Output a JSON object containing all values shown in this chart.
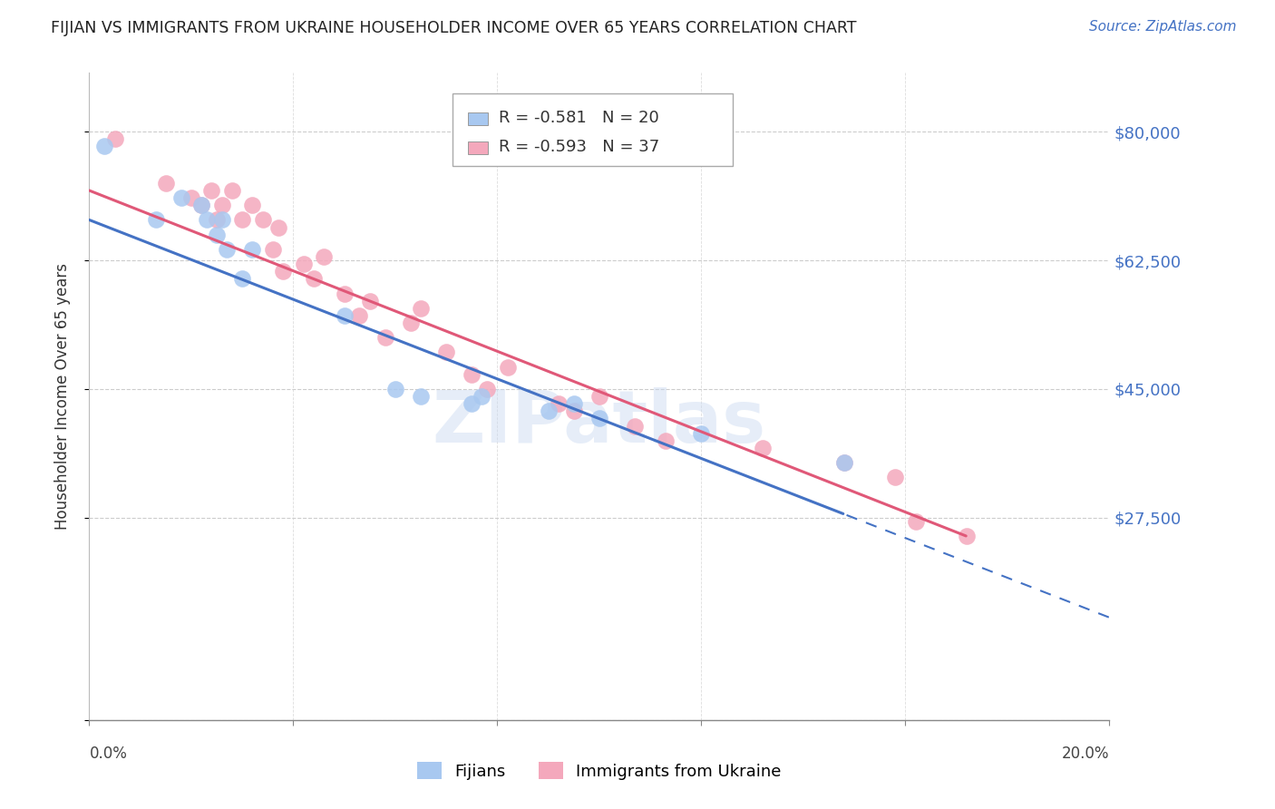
{
  "title": "FIJIAN VS IMMIGRANTS FROM UKRAINE HOUSEHOLDER INCOME OVER 65 YEARS CORRELATION CHART",
  "source": "Source: ZipAtlas.com",
  "ylabel": "Householder Income Over 65 years",
  "yticks": [
    0,
    27500,
    45000,
    62500,
    80000
  ],
  "ytick_labels": [
    "",
    "$27,500",
    "$45,000",
    "$62,500",
    "$80,000"
  ],
  "xmin": 0.0,
  "xmax": 0.2,
  "ymin": 10000,
  "ymax": 88000,
  "fijian_R": -0.581,
  "fijian_N": 20,
  "ukraine_R": -0.593,
  "ukraine_N": 37,
  "fijian_color": "#a8c8f0",
  "ukraine_color": "#f4a8bc",
  "fijian_line_color": "#4472c4",
  "ukraine_line_color": "#e05878",
  "watermark": "ZIPatlas",
  "fijian_x": [
    0.003,
    0.018,
    0.013,
    0.022,
    0.023,
    0.025,
    0.026,
    0.027,
    0.03,
    0.032,
    0.05,
    0.06,
    0.065,
    0.075,
    0.077,
    0.09,
    0.095,
    0.1,
    0.12,
    0.148
  ],
  "fijian_y": [
    78000,
    71000,
    68000,
    70000,
    68000,
    66000,
    68000,
    64000,
    60000,
    64000,
    55000,
    45000,
    44000,
    43000,
    44000,
    42000,
    43000,
    41000,
    39000,
    35000
  ],
  "ukraine_x": [
    0.005,
    0.015,
    0.02,
    0.022,
    0.024,
    0.025,
    0.026,
    0.028,
    0.03,
    0.032,
    0.034,
    0.036,
    0.037,
    0.038,
    0.042,
    0.044,
    0.046,
    0.05,
    0.053,
    0.055,
    0.058,
    0.063,
    0.065,
    0.07,
    0.075,
    0.078,
    0.082,
    0.092,
    0.095,
    0.1,
    0.107,
    0.113,
    0.132,
    0.148,
    0.158,
    0.162,
    0.172
  ],
  "ukraine_y": [
    79000,
    73000,
    71000,
    70000,
    72000,
    68000,
    70000,
    72000,
    68000,
    70000,
    68000,
    64000,
    67000,
    61000,
    62000,
    60000,
    63000,
    58000,
    55000,
    57000,
    52000,
    54000,
    56000,
    50000,
    47000,
    45000,
    48000,
    43000,
    42000,
    44000,
    40000,
    38000,
    37000,
    35000,
    33000,
    27000,
    25000
  ],
  "fijian_line_x0": 0.0,
  "fijian_line_y0": 68000,
  "fijian_line_x1": 0.148,
  "fijian_line_y1": 28000,
  "ukraine_line_x0": 0.0,
  "ukraine_line_y0": 72000,
  "ukraine_line_x1": 0.172,
  "ukraine_line_y1": 25000
}
